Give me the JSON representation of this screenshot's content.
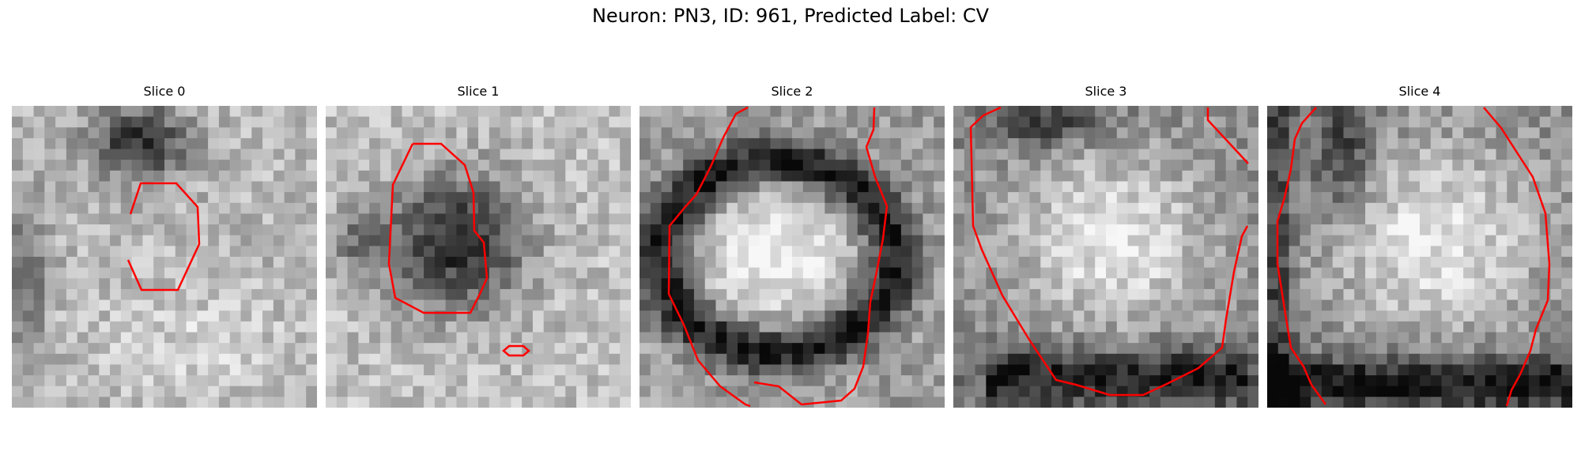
{
  "figure": {
    "title": "Neuron: PN3, ID: 961, Predicted Label: CV"
  },
  "panels": [
    {
      "title": "Slice 0",
      "pattern": "dark-top-small-outline"
    },
    {
      "title": "Slice 1",
      "pattern": "dark-blob-center"
    },
    {
      "title": "Slice 2",
      "pattern": "bright-center-dark-ring"
    },
    {
      "title": "Slice 3",
      "pattern": "bright-center-dark-bottom"
    },
    {
      "title": "Slice 4",
      "pattern": "bright-center-dark-edges"
    }
  ],
  "colors": {
    "contour": "#ff0000"
  }
}
